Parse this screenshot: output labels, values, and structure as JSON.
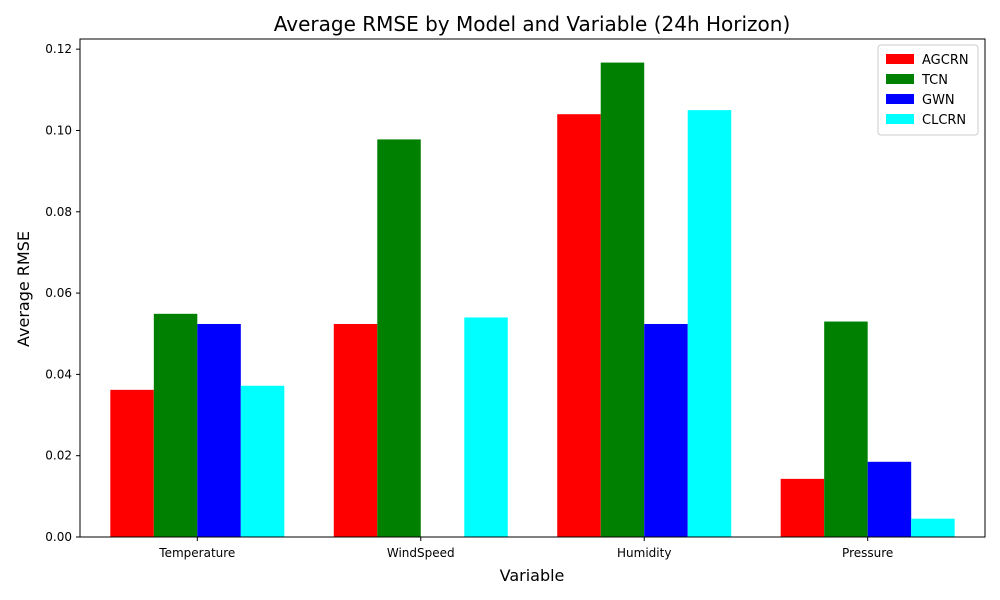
{
  "chart_data": {
    "type": "bar",
    "title": "Average RMSE by Model and Variable (24h Horizon)",
    "xlabel": "Variable",
    "ylabel": "Average RMSE",
    "categories": [
      "Temperature",
      "WindSpeed",
      "Humidity",
      "Pressure"
    ],
    "ylim": [
      0,
      0.1225
    ],
    "yticks": [
      "0.00",
      "0.02",
      "0.04",
      "0.06",
      "0.08",
      "0.10",
      "0.12"
    ],
    "series": [
      {
        "name": "AGCRN",
        "color": "#ff0000",
        "values": [
          0.0362,
          0.0524,
          0.104,
          0.0143
        ]
      },
      {
        "name": "TCN",
        "color": "#008000",
        "values": [
          0.0549,
          0.0978,
          0.1167,
          0.053
        ]
      },
      {
        "name": "GWN",
        "color": "#0000ff",
        "values": [
          0.0524,
          0.0,
          0.0524,
          0.0185
        ]
      },
      {
        "name": "CLCRN",
        "color": "#00ffff",
        "values": [
          0.0372,
          0.054,
          0.105,
          0.0045
        ]
      }
    ],
    "legend_position": "top-right",
    "grid": false
  }
}
